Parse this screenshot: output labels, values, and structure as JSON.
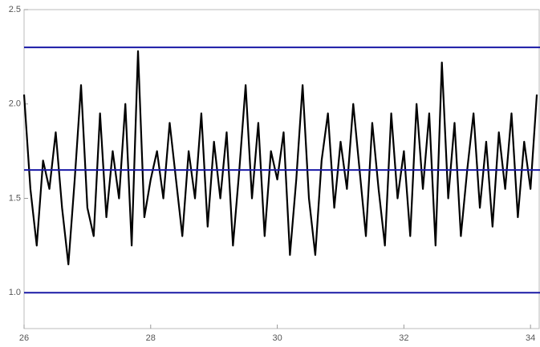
{
  "chart_data": {
    "type": "line",
    "x": [
      26.0,
      26.1,
      26.2,
      26.3,
      26.4,
      26.5,
      26.6,
      26.7,
      26.8,
      26.9,
      27.0,
      27.1,
      27.2,
      27.3,
      27.4,
      27.5,
      27.6,
      27.7,
      27.8,
      27.9,
      28.0,
      28.1,
      28.2,
      28.3,
      28.4,
      28.5,
      28.6,
      28.7,
      28.8,
      28.9,
      29.0,
      29.1,
      29.2,
      29.3,
      29.4,
      29.5,
      29.6,
      29.7,
      29.8,
      29.9,
      30.0,
      30.1,
      30.2,
      30.3,
      30.4,
      30.5,
      30.6,
      30.7,
      30.8,
      30.9,
      31.0,
      31.1,
      31.2,
      31.3,
      31.4,
      31.5,
      31.6,
      31.7,
      31.8,
      31.9,
      32.0,
      32.1,
      32.2,
      32.3,
      32.4,
      32.5,
      32.6,
      32.7,
      32.8,
      32.9,
      33.0,
      33.1,
      33.2,
      33.3,
      33.4,
      33.5,
      33.6,
      33.7,
      33.8,
      33.9,
      34.0,
      34.1
    ],
    "series": [
      {
        "color": "#000000",
        "values": [
          2.05,
          1.55,
          1.25,
          1.7,
          1.55,
          1.85,
          1.45,
          1.15,
          1.6,
          2.1,
          1.45,
          1.3,
          1.95,
          1.4,
          1.75,
          1.5,
          2.0,
          1.25,
          2.28,
          1.4,
          1.6,
          1.75,
          1.5,
          1.9,
          1.6,
          1.3,
          1.75,
          1.5,
          1.95,
          1.35,
          1.8,
          1.5,
          1.85,
          1.25,
          1.65,
          2.1,
          1.5,
          1.9,
          1.3,
          1.75,
          1.6,
          1.85,
          1.2,
          1.6,
          2.1,
          1.5,
          1.2,
          1.7,
          1.95,
          1.45,
          1.8,
          1.55,
          2.0,
          1.65,
          1.3,
          1.9,
          1.55,
          1.25,
          1.95,
          1.5,
          1.75,
          1.3,
          2.0,
          1.55,
          1.95,
          1.25,
          2.22,
          1.5,
          1.9,
          1.3,
          1.65,
          1.95,
          1.45,
          1.8,
          1.35,
          1.85,
          1.55,
          1.95,
          1.4,
          1.8,
          1.55,
          2.05
        ]
      }
    ],
    "hlines": {
      "color": "#1a1aa6",
      "values": [
        2.3,
        1.65,
        1.0
      ]
    },
    "xlim": [
      26,
      34.15
    ],
    "ylim": [
      0.81,
      2.5
    ],
    "xticks": [
      26,
      28,
      30,
      32,
      34
    ],
    "yticks": [
      {
        "value": 1.0,
        "label": "1.0"
      },
      1.5,
      {
        "value": 2.0,
        "label": "2.0"
      },
      2.5
    ]
  }
}
